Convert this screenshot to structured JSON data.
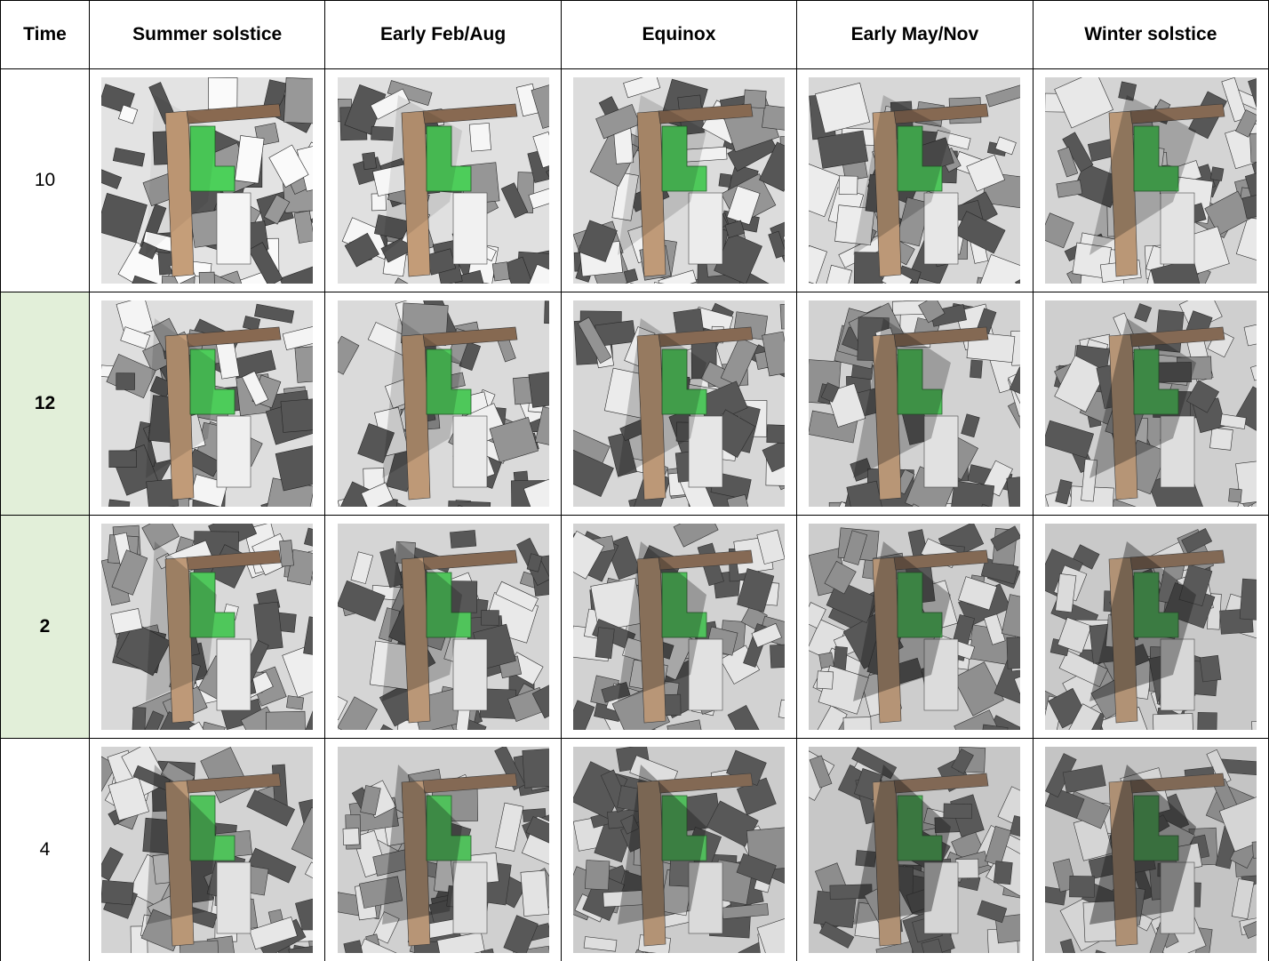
{
  "table": {
    "header": [
      "Time",
      "Summer solstice",
      "Early Feb/Aug",
      "Equinox",
      "Early May/Nov",
      "Winter solstice"
    ],
    "rows": [
      "10",
      "12",
      "2",
      "4"
    ]
  }
}
